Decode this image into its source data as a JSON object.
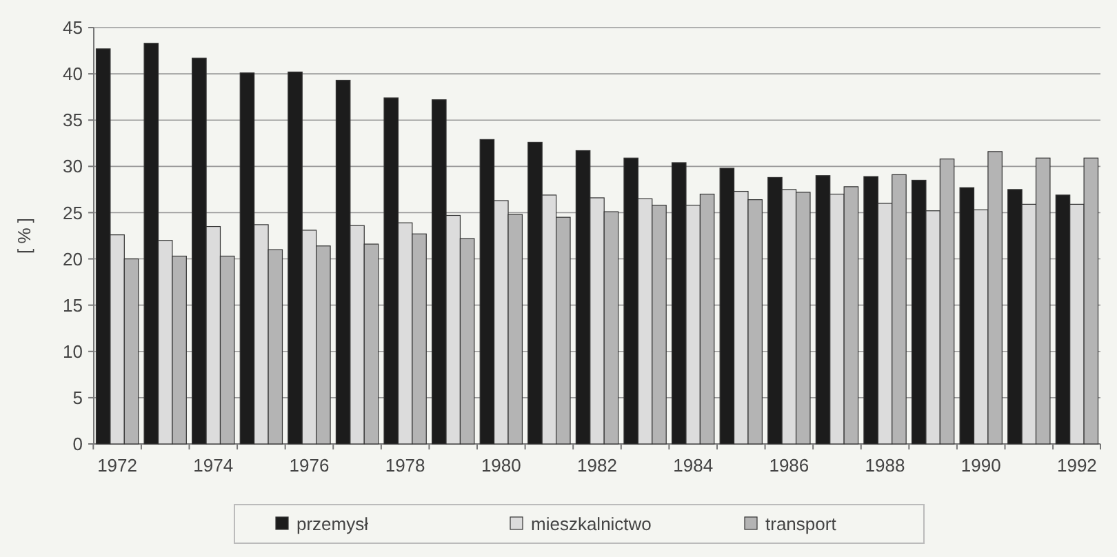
{
  "chart_data": {
    "type": "bar",
    "ylabel": "[ % ]",
    "categories": [
      "1972",
      null,
      "1974",
      null,
      "1976",
      null,
      "1978",
      null,
      "1980",
      null,
      "1982",
      null,
      "1984",
      null,
      "1986",
      null,
      "1988",
      null,
      "1990",
      null,
      "1992"
    ],
    "series": [
      {
        "name": "przemysł",
        "color": "#1c1c1c",
        "values": [
          42.7,
          43.3,
          41.7,
          40.1,
          40.2,
          39.3,
          37.4,
          37.2,
          32.9,
          32.6,
          31.7,
          30.9,
          30.4,
          29.8,
          28.8,
          29.0,
          28.9,
          28.5,
          27.7,
          27.5,
          26.9
        ]
      },
      {
        "name": "mieszkalnictwo",
        "color": "#dcdcdc",
        "values": [
          22.6,
          22.0,
          23.5,
          23.7,
          23.1,
          23.6,
          23.9,
          24.7,
          26.3,
          26.9,
          26.6,
          26.5,
          25.8,
          27.3,
          27.5,
          27.0,
          26.0,
          25.2,
          25.3,
          25.9,
          25.9
        ]
      },
      {
        "name": "transport",
        "color": "#b4b4b4",
        "values": [
          20.0,
          20.3,
          20.3,
          21.0,
          21.4,
          21.6,
          22.7,
          22.2,
          24.8,
          24.5,
          25.1,
          25.8,
          27.0,
          26.4,
          27.2,
          27.8,
          29.1,
          30.8,
          31.6,
          30.9,
          30.9
        ]
      }
    ],
    "ylim": [
      0,
      45
    ],
    "yticks": [
      0,
      5,
      10,
      15,
      20,
      25,
      30,
      35,
      40,
      45
    ],
    "grid": "y",
    "legend": "bottom"
  }
}
